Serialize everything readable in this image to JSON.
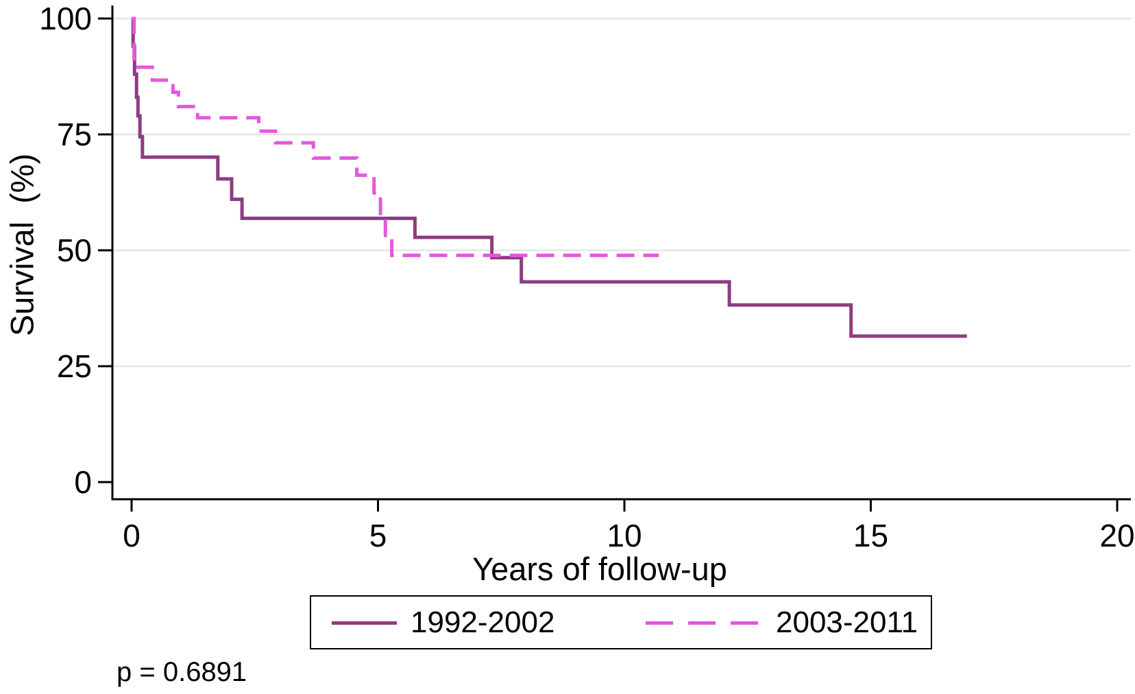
{
  "chart_data": {
    "type": "line",
    "subtype": "kaplan_meier_step_survival",
    "title": "",
    "xlabel": "Years of follow-up",
    "ylabel": "Survival  (%)",
    "xlim": [
      0,
      20
    ],
    "ylim": [
      0,
      100
    ],
    "xticks": [
      0,
      5,
      10,
      15,
      20
    ],
    "yticks": [
      100,
      75,
      50,
      25,
      0
    ],
    "grid": {
      "horizontal_at": [
        100,
        75,
        50,
        25
      ]
    },
    "legend_position": "bottom-center-boxed",
    "annotation": "p = 0.6891",
    "colors": {
      "background": "#FFFFFF",
      "axis": "#000000",
      "grid": "#E5E5E5",
      "series_1992_2002": "#8E3C80",
      "series_2003_2011": "#E259DD"
    },
    "series": [
      {
        "name": "1992-2002",
        "line_style": "solid",
        "color": "#8E3C80",
        "points_pct_after_drop": [
          [
            0,
            100
          ],
          [
            0.03,
            94
          ],
          [
            0.06,
            88
          ],
          [
            0.1,
            83
          ],
          [
            0.13,
            79
          ],
          [
            0.17,
            74.5
          ],
          [
            0.22,
            70.1
          ],
          [
            1.75,
            65.4
          ],
          [
            2.03,
            61
          ],
          [
            2.24,
            56.9
          ],
          [
            5.75,
            52.8
          ],
          [
            7.31,
            48.4
          ],
          [
            7.91,
            43.2
          ],
          [
            12.13,
            38.2
          ],
          [
            14.6,
            31.5
          ]
        ],
        "end_time_years": 16.95
      },
      {
        "name": "2003-2011",
        "line_style": "dashed",
        "color": "#E259DD",
        "points_pct_after_drop": [
          [
            0,
            100
          ],
          [
            0.05,
            89.5
          ],
          [
            0.42,
            86.7
          ],
          [
            0.84,
            84.1
          ],
          [
            0.95,
            81
          ],
          [
            1.34,
            78.6
          ],
          [
            2.58,
            75.7
          ],
          [
            2.92,
            73.2
          ],
          [
            3.69,
            69.9
          ],
          [
            4.57,
            66.2
          ],
          [
            4.92,
            62.4
          ],
          [
            5.05,
            56.9
          ],
          [
            5.15,
            52
          ],
          [
            5.28,
            48.9
          ]
        ],
        "end_time_years": 10.7
      }
    ]
  }
}
